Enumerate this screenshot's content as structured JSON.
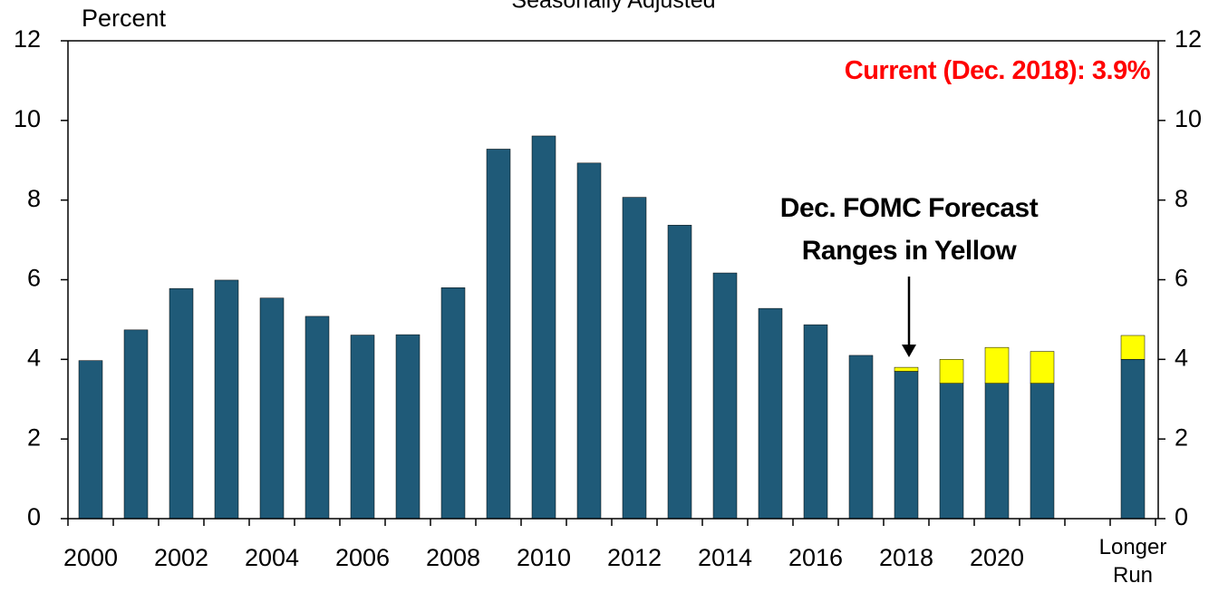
{
  "chart_data": {
    "type": "stacked_bar",
    "subtitle": "Seasonally Adjusted",
    "y_label": "Percent",
    "categories": [
      "2000",
      null,
      "2002",
      null,
      "2004",
      null,
      "2006",
      null,
      "2008",
      null,
      "2010",
      null,
      "2012",
      null,
      "2014",
      null,
      "2016",
      null,
      "2018",
      null,
      "2020",
      null,
      null,
      "Longer Run"
    ],
    "series": [
      {
        "color": "#1f5a78",
        "values": [
          3.97,
          4.74,
          5.78,
          5.99,
          5.54,
          5.08,
          4.61,
          4.62,
          5.8,
          9.28,
          9.61,
          8.93,
          8.07,
          7.37,
          6.17,
          5.28,
          4.87,
          4.1,
          3.7,
          3.4,
          3.4,
          3.4,
          null,
          4.0
        ]
      },
      {
        "color": "#ffff00",
        "values": [
          null,
          null,
          null,
          null,
          null,
          null,
          null,
          null,
          null,
          null,
          null,
          null,
          null,
          null,
          null,
          null,
          null,
          null,
          0.1,
          0.6,
          0.9,
          0.8,
          null,
          0.6
        ]
      }
    ],
    "annotations": [
      {
        "text": "Current (Dec. 2018): 3.9%",
        "color": "#ff0000"
      },
      {
        "text": "Dec. FOMC Forecast Ranges in Yellow",
        "color": "#000000"
      }
    ],
    "ylim": [
      0,
      12
    ],
    "yticks": [
      0,
      2,
      4,
      6,
      8,
      10,
      12
    ],
    "y2lim": [
      0,
      12
    ],
    "y2ticks": [
      0,
      2,
      4,
      6,
      8,
      10,
      12
    ],
    "grid": false
  }
}
